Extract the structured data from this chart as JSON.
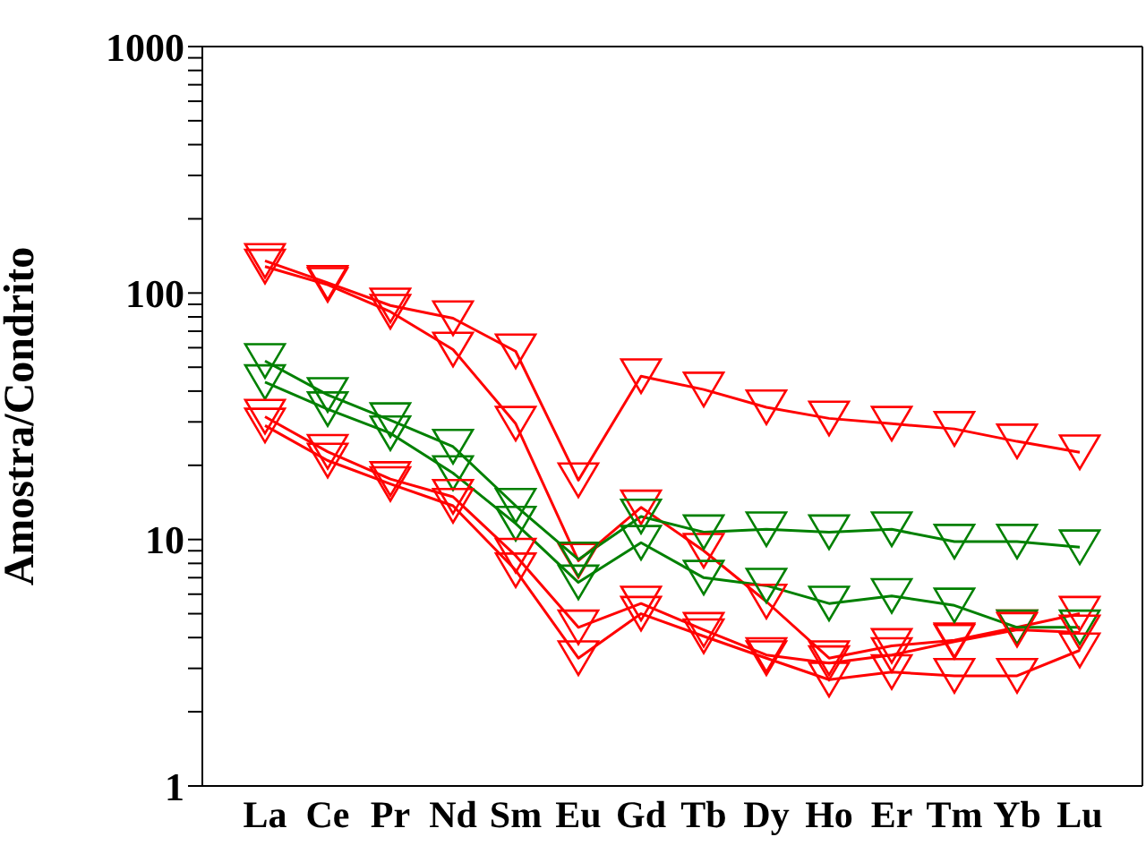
{
  "chart_data": {
    "type": "line",
    "ylabel": "Amostra/Condrito",
    "categories": [
      "La",
      "Ce",
      "Pr",
      "Nd",
      "Sm",
      "Eu",
      "Gd",
      "Tb",
      "Dy",
      "Ho",
      "Er",
      "Tm",
      "Yb",
      "Lu"
    ],
    "log": "y",
    "ylim": [
      1,
      1000
    ],
    "yticks": [
      1,
      {
        "value": 2,
        "label": null
      },
      {
        "value": 3,
        "label": null
      },
      {
        "value": 4,
        "label": null
      },
      {
        "value": 5,
        "label": null
      },
      {
        "value": 6,
        "label": null
      },
      {
        "value": 7,
        "label": null
      },
      {
        "value": 8,
        "label": null
      },
      {
        "value": 9,
        "label": null
      },
      10,
      {
        "value": 20,
        "label": null
      },
      {
        "value": 30,
        "label": null
      },
      {
        "value": 40,
        "label": null
      },
      {
        "value": 50,
        "label": null
      },
      {
        "value": 60,
        "label": null
      },
      {
        "value": 70,
        "label": null
      },
      {
        "value": 80,
        "label": null
      },
      {
        "value": 90,
        "label": null
      },
      100,
      {
        "value": 200,
        "label": null
      },
      {
        "value": 300,
        "label": null
      },
      {
        "value": 400,
        "label": null
      },
      {
        "value": 500,
        "label": null
      },
      {
        "value": 600,
        "label": null
      },
      {
        "value": 700,
        "label": null
      },
      {
        "value": 800,
        "label": null
      },
      {
        "value": 900,
        "label": null
      },
      1000
    ],
    "marker": "triangle",
    "series": [
      {
        "color": "#ff0000",
        "values": [
          135,
          110,
          89,
          79,
          58,
          17.4,
          46,
          40.6,
          34.4,
          31,
          29.5,
          28.1,
          25,
          22.6
        ]
      },
      {
        "color": "#ff0000",
        "values": [
          128,
          108,
          84,
          59,
          29.5,
          8.2,
          13.5,
          9,
          5.6,
          3.3,
          3.7,
          3.9,
          4.4,
          5
        ]
      },
      {
        "color": "#008000",
        "values": [
          53,
          38.6,
          30.5,
          23.8,
          13.7,
          8.3,
          12.4,
          10.7,
          11,
          10.7,
          11,
          9.8,
          9.8,
          9.3
        ]
      },
      {
        "color": "#008000",
        "values": [
          43.5,
          33.8,
          27,
          18.6,
          11.6,
          6.7,
          9.7,
          7,
          6.5,
          5.5,
          5.9,
          5.4,
          4.4,
          4.4
        ]
      },
      {
        "color": "#ff0000",
        "values": [
          31.5,
          22.7,
          17.6,
          14.9,
          8.6,
          4.4,
          5.5,
          4.3,
          3.4,
          3.15,
          3.4,
          3.85,
          4.3,
          4.2
        ]
      },
      {
        "color": "#ff0000",
        "values": [
          29,
          20.9,
          16.8,
          13.7,
          7.5,
          3.3,
          5,
          4.05,
          3.3,
          2.7,
          2.9,
          2.8,
          2.8,
          3.55
        ]
      }
    ]
  }
}
